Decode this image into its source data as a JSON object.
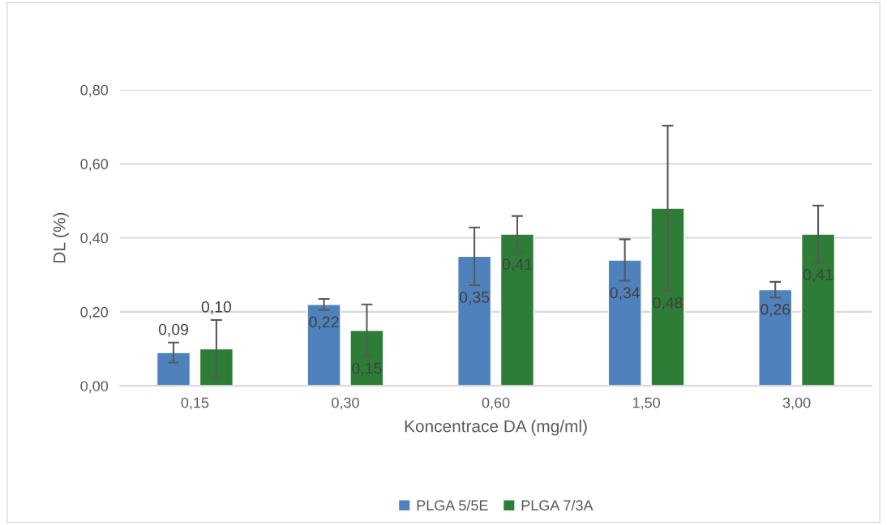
{
  "chart_data": {
    "type": "bar",
    "xlabel": "Koncentrace DA (mg/ml)",
    "ylabel": "DL (%)",
    "categories": [
      "0,15",
      "0,30",
      "0,60",
      "1,50",
      "3,00"
    ],
    "series": [
      {
        "name": "PLGA 5/5E",
        "color": "#4f81bd",
        "values": [
          0.09,
          0.22,
          0.35,
          0.34,
          0.26
        ],
        "errors": [
          0.027,
          0.015,
          0.078,
          0.056,
          0.021
        ],
        "value_labels": [
          "0,09",
          "0,22",
          "0,35",
          "0,34",
          "0,26"
        ]
      },
      {
        "name": "PLGA 7/3A",
        "color": "#2e7d37",
        "values": [
          0.1,
          0.15,
          0.41,
          0.48,
          0.41
        ],
        "errors": [
          0.078,
          0.07,
          0.049,
          0.223,
          0.077
        ],
        "value_labels": [
          "0,10",
          "0,15",
          "0,41",
          "0,48",
          "0,41"
        ]
      }
    ],
    "ylim": [
      0,
      0.8
    ],
    "yticks": [
      {
        "value": 0,
        "label": "0,00"
      },
      {
        "value": 0.2,
        "label": "0,20"
      },
      {
        "value": 0.4,
        "label": "0,40"
      },
      {
        "value": 0.6,
        "label": "0,60"
      },
      {
        "value": 0.8,
        "label": "0,80"
      }
    ],
    "grid": "y",
    "legend": "bottom"
  }
}
